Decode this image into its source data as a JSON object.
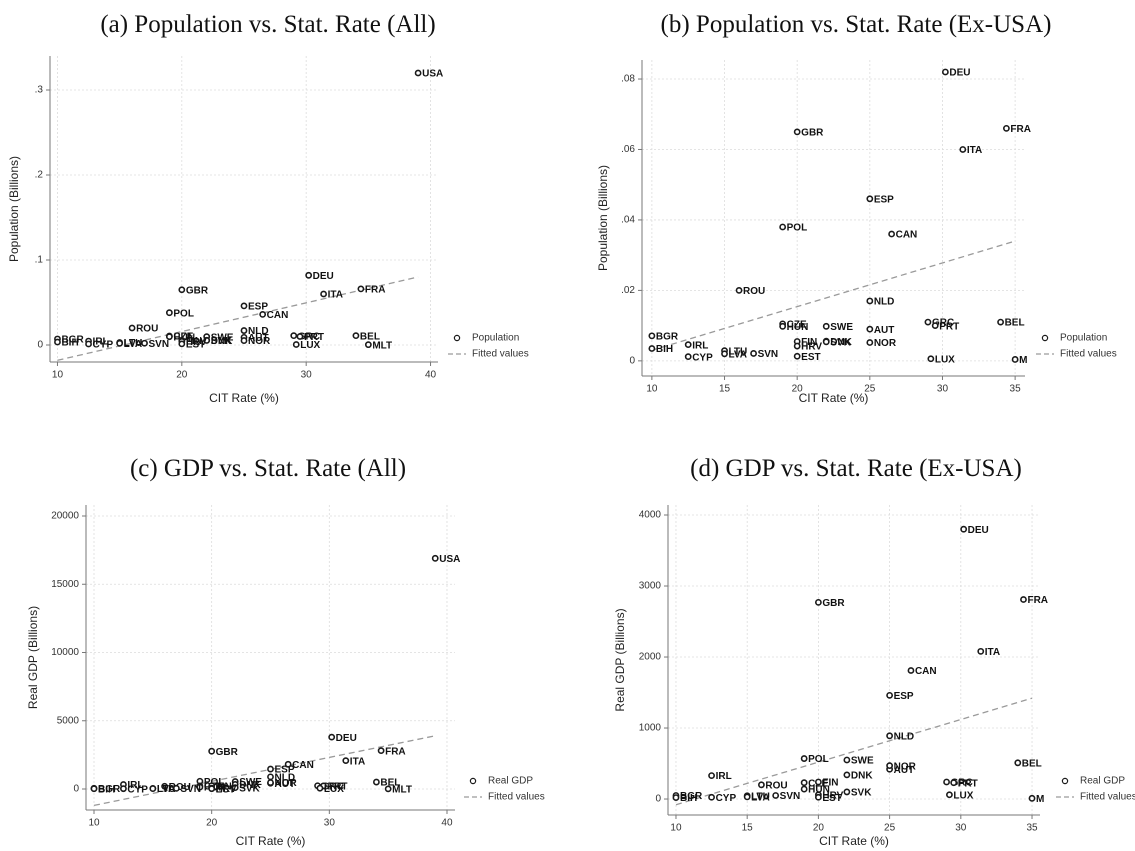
{
  "chart_data": [
    {
      "type": "scatter",
      "title": "(a) Population vs. Stat. Rate (All)",
      "x_label": "CIT Rate (%)",
      "y_label": "Population (Billions)",
      "x": [
        39,
        30.2,
        20,
        34.4,
        31.4,
        25,
        19,
        26.5,
        16,
        25,
        34,
        29,
        29.5,
        25,
        19,
        19,
        22,
        22,
        22,
        20,
        20,
        25,
        10,
        10,
        12.5,
        12.5,
        15,
        15,
        17,
        20,
        29.2,
        35
      ],
      "labels": [
        "USA",
        "DEU",
        "GBR",
        "FRA",
        "ITA",
        "ESP",
        "POL",
        "CAN",
        "ROU",
        "NLD",
        "BEL",
        "GRC",
        "PRT",
        "AUT",
        "CZE",
        "HUN",
        "SWE",
        "DNK",
        "SVK",
        "FIN",
        "HRV",
        "NOR",
        "BGR",
        "BIH",
        "IRL",
        "CYP",
        "LTU",
        "LVA",
        "SVN",
        "EST",
        "LUX",
        "MLT"
      ],
      "series": [
        {
          "name": "Population",
          "color": "#1a1a1a",
          "values": [
            0.32,
            0.082,
            0.065,
            0.066,
            0.06,
            0.046,
            0.038,
            0.036,
            0.02,
            0.017,
            0.011,
            0.011,
            0.01,
            0.009,
            0.0105,
            0.0098,
            0.0098,
            0.0056,
            0.0054,
            0.0055,
            0.0042,
            0.0052,
            0.0071,
            0.0035,
            0.0046,
            0.0012,
            0.0029,
            0.002,
            0.0021,
            0.0013,
            0.0006,
            0.0004
          ]
        },
        {
          "name": "Fitted values",
          "color": "#9a9a9a",
          "x": [
            10,
            39
          ],
          "values": [
            -0.018,
            0.08
          ]
        }
      ],
      "xlim": [
        9.4,
        40.6
      ],
      "ylim": [
        -0.02,
        0.34
      ],
      "xticks": [
        10,
        20,
        30,
        40
      ],
      "yticks": [
        0,
        {
          "value": 0.1,
          "label": ".1"
        },
        {
          "value": 0.2,
          "label": ".2"
        },
        {
          "value": 0.3,
          "label": ".3"
        }
      ],
      "grid": true,
      "legend": "right"
    },
    {
      "type": "scatter",
      "title": "(b) Population vs. Stat. Rate (Ex-USA)",
      "x_label": "CIT Rate (%)",
      "y_label": "Population (Billions)",
      "x": [
        30.2,
        20,
        34.4,
        31.4,
        25,
        19,
        26.5,
        16,
        25,
        34,
        29,
        29.5,
        25,
        19,
        19,
        22,
        22,
        22,
        20,
        20,
        25,
        10,
        10,
        12.5,
        12.5,
        15,
        15,
        17,
        20,
        29.2,
        35
      ],
      "labels": [
        "DEU",
        "GBR",
        "FRA",
        "ITA",
        "ESP",
        "POL",
        "CAN",
        "ROU",
        "NLD",
        "BEL",
        "GRC",
        "PRT",
        "AUT",
        "CZE",
        "HUN",
        "SWE",
        "DNK",
        "SVK",
        "FIN",
        "HRV",
        "NOR",
        "BGR",
        "BIH",
        "IRL",
        "CYP",
        "LTU",
        "LVA",
        "SVN",
        "EST",
        "LUX",
        "M"
      ],
      "series": [
        {
          "name": "Population",
          "color": "#1a1a1a",
          "values": [
            0.082,
            0.065,
            0.066,
            0.06,
            0.046,
            0.038,
            0.036,
            0.02,
            0.017,
            0.011,
            0.011,
            0.01,
            0.009,
            0.0105,
            0.0098,
            0.0098,
            0.0056,
            0.0054,
            0.0055,
            0.0042,
            0.0052,
            0.0071,
            0.0035,
            0.0046,
            0.0012,
            0.0029,
            0.002,
            0.0021,
            0.0013,
            0.0006,
            0.0004
          ]
        },
        {
          "name": "Fitted values",
          "color": "#9a9a9a",
          "x": [
            10,
            35
          ],
          "values": [
            0.003,
            0.034
          ]
        }
      ],
      "xlim": [
        9.32,
        35.68
      ],
      "ylim": [
        -0.0043,
        0.0854
      ],
      "xticks": [
        10,
        15,
        20,
        25,
        30,
        35
      ],
      "yticks": [
        0,
        {
          "value": 0.02,
          "label": ".02"
        },
        {
          "value": 0.04,
          "label": ".04"
        },
        {
          "value": 0.06,
          "label": ".06"
        },
        {
          "value": 0.08,
          "label": ".08"
        }
      ],
      "grid": true,
      "legend": "right"
    },
    {
      "type": "scatter",
      "title": "(c) GDP vs. Stat. Rate (All)",
      "x_label": "CIT Rate (%)",
      "y_label": "Real GDP (Billions)",
      "x": [
        39,
        30.2,
        20,
        34.4,
        31.4,
        25,
        19,
        26.5,
        16,
        25,
        34,
        29,
        29.5,
        25,
        19,
        19,
        22,
        22,
        22,
        20,
        20,
        25,
        10,
        10,
        12.5,
        12.5,
        15,
        15,
        17,
        20,
        29.2,
        35
      ],
      "labels": [
        "USA",
        "DEU",
        "GBR",
        "FRA",
        "ITA",
        "ESP",
        "POL",
        "CAN",
        "ROU",
        "NLD",
        "BEL",
        "GRC",
        "PRT",
        "AUT",
        "CZE",
        "HUN",
        "SWE",
        "DNK",
        "SVK",
        "FIN",
        "HRV",
        "NOR",
        "BGR",
        "BIH",
        "IRL",
        "CYP",
        "LTU",
        "LVA",
        "SVN",
        "EST",
        "LUX",
        "MLT"
      ],
      "series": [
        {
          "name": "Real GDP",
          "color": "#1a1a1a",
          "values": [
            16900,
            3800,
            2770,
            2810,
            2080,
            1460,
            570,
            1810,
            200,
            890,
            510,
            240,
            230,
            420,
            230,
            140,
            550,
            340,
            100,
            240,
            60,
            470,
            50,
            20,
            330,
            25,
            45,
            30,
            50,
            25,
            60,
            10
          ]
        },
        {
          "name": "Fitted values",
          "color": "#9a9a9a",
          "x": [
            10,
            39
          ],
          "values": [
            -1200,
            3900
          ]
        }
      ],
      "xlim": [
        9.32,
        40.68
      ],
      "ylim": [
        -1538,
        20806
      ],
      "xticks": [
        10,
        20,
        30,
        40
      ],
      "yticks": [
        0,
        5000,
        10000,
        15000,
        20000
      ],
      "grid": true,
      "legend": "right"
    },
    {
      "type": "scatter",
      "title": "(d) GDP vs. Stat. Rate (Ex-USA)",
      "x_label": "CIT Rate (%)",
      "y_label": "Real GDP (Billions)",
      "x": [
        30.2,
        20,
        34.4,
        31.4,
        25,
        19,
        26.5,
        16,
        25,
        34,
        29,
        29.5,
        25,
        19,
        19,
        22,
        22,
        22,
        20,
        20,
        25,
        10,
        10,
        12.5,
        12.5,
        15,
        15,
        17,
        20,
        29.2,
        35
      ],
      "labels": [
        "DEU",
        "GBR",
        "FRA",
        "ITA",
        "ESP",
        "POL",
        "CAN",
        "ROU",
        "NLD",
        "BEL",
        "GRC",
        "PRT",
        "AUT",
        "CZE",
        "HUN",
        "SWE",
        "DNK",
        "SVK",
        "FIN",
        "HRV",
        "NOR",
        "BGR",
        "BIH",
        "IRL",
        "CYP",
        "LTU",
        "LVA",
        "SVN",
        "EST",
        "LUX",
        "M"
      ],
      "series": [
        {
          "name": "Real GDP",
          "color": "#1a1a1a",
          "values": [
            3800,
            2770,
            2810,
            2080,
            1460,
            570,
            1810,
            200,
            890,
            510,
            240,
            230,
            420,
            230,
            140,
            550,
            340,
            100,
            240,
            60,
            470,
            50,
            20,
            330,
            25,
            45,
            30,
            50,
            25,
            60,
            10
          ]
        },
        {
          "name": "Fitted values",
          "color": "#9a9a9a",
          "x": [
            10,
            35
          ],
          "values": [
            -80,
            1420
          ]
        }
      ],
      "xlim": [
        9.44,
        35.56
      ],
      "ylim": [
        -225,
        4141
      ],
      "xticks": [
        10,
        15,
        20,
        25,
        30,
        35
      ],
      "yticks": [
        0,
        1000,
        2000,
        3000,
        4000
      ],
      "grid": true,
      "legend": "right"
    }
  ]
}
